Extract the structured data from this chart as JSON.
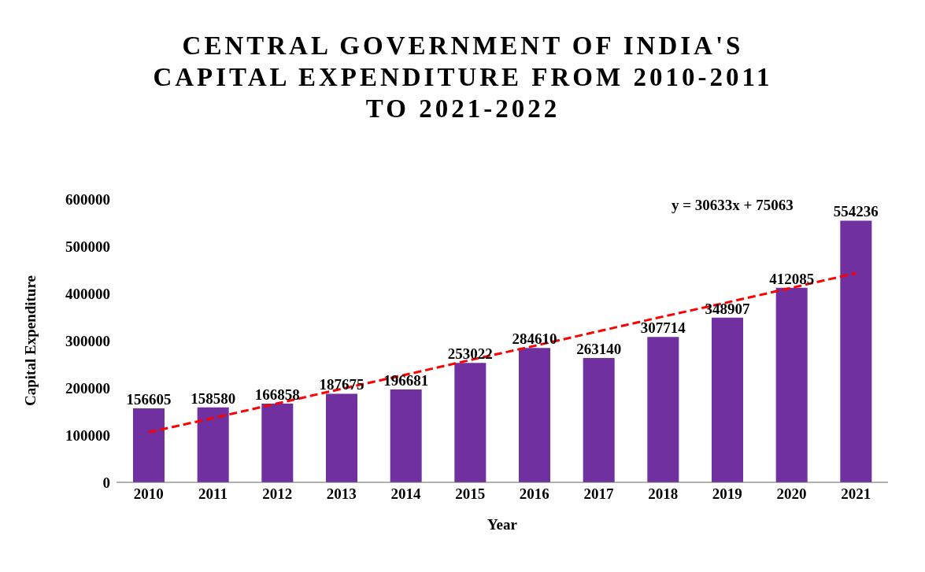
{
  "chart_data": {
    "type": "bar",
    "title": "CENTRAL GOVERNMENT OF INDIA'S CAPITAL EXPENDITURE FROM 2010-2011 TO 2021-2022",
    "xlabel": "Year",
    "ylabel": "Capital Expenditure",
    "categories": [
      "2010",
      "2011",
      "2012",
      "2013",
      "2014",
      "2015",
      "2016",
      "2017",
      "2018",
      "2019",
      "2020",
      "2021"
    ],
    "series": [
      {
        "color": "#7030a0",
        "values": [
          156605,
          158580,
          166858,
          187675,
          196681,
          253022,
          284610,
          263140,
          307714,
          348907,
          412085,
          554236
        ],
        "value_labels": [
          "156605",
          "158580",
          "166858",
          "187675",
          "196681",
          "253022",
          "284610",
          "263140",
          "307714",
          "348907",
          "412085",
          "554236"
        ]
      },
      {
        "type": "line",
        "color": "#ff0000",
        "line_style": "dashed",
        "marker": "none",
        "values": [
          106000,
          136000,
          167000,
          198000,
          228000,
          259000,
          289000,
          320000,
          351000,
          381000,
          412000,
          443000
        ]
      }
    ],
    "ylim": [
      0,
      600000
    ],
    "yticks": [
      0,
      100000,
      200000,
      300000,
      400000,
      500000,
      600000
    ],
    "grid": false,
    "annotations": [
      "y = 30633x + 75063"
    ]
  }
}
